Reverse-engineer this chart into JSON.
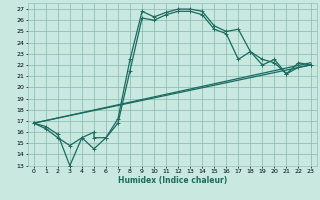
{
  "title": "",
  "xlabel": "Humidex (Indice chaleur)",
  "bg_color": "#c8e8e0",
  "grid_color": "#90c0b8",
  "line_color": "#1a6b60",
  "xlim": [
    -0.5,
    23.5
  ],
  "ylim": [
    13,
    27.5
  ],
  "xticks": [
    0,
    1,
    2,
    3,
    4,
    5,
    6,
    7,
    8,
    9,
    10,
    11,
    12,
    13,
    14,
    15,
    16,
    17,
    18,
    19,
    20,
    21,
    22,
    23
  ],
  "yticks": [
    13,
    14,
    15,
    16,
    17,
    18,
    19,
    20,
    21,
    22,
    23,
    24,
    25,
    26,
    27
  ],
  "series1_x": [
    0,
    1,
    2,
    3,
    4,
    5,
    5,
    6,
    7,
    8,
    9,
    10,
    11,
    12,
    13,
    14,
    15,
    16,
    17,
    18,
    19,
    20,
    21,
    22,
    23
  ],
  "series1_y": [
    16.8,
    16.3,
    15.5,
    14.8,
    15.5,
    16.0,
    15.5,
    15.5,
    17.2,
    22.5,
    26.8,
    26.3,
    26.7,
    27.0,
    27.0,
    26.8,
    25.5,
    25.0,
    25.2,
    23.2,
    22.5,
    22.2,
    21.2,
    22.2,
    22.0
  ],
  "series2_x": [
    0,
    1,
    2,
    3,
    4,
    5,
    6,
    7,
    8,
    9,
    10,
    11,
    12,
    13,
    14,
    15,
    16,
    17,
    18,
    19,
    20,
    21,
    22,
    23
  ],
  "series2_y": [
    16.8,
    16.5,
    15.8,
    13.0,
    15.5,
    14.5,
    15.5,
    16.8,
    21.5,
    26.2,
    26.0,
    26.5,
    26.8,
    26.8,
    26.5,
    25.2,
    24.8,
    22.5,
    23.2,
    22.0,
    22.5,
    21.2,
    21.8,
    22.0
  ],
  "series3_x": [
    0,
    23
  ],
  "series3_y": [
    16.8,
    22.0
  ],
  "series4_x": [
    0,
    23
  ],
  "series4_y": [
    16.8,
    22.2
  ]
}
